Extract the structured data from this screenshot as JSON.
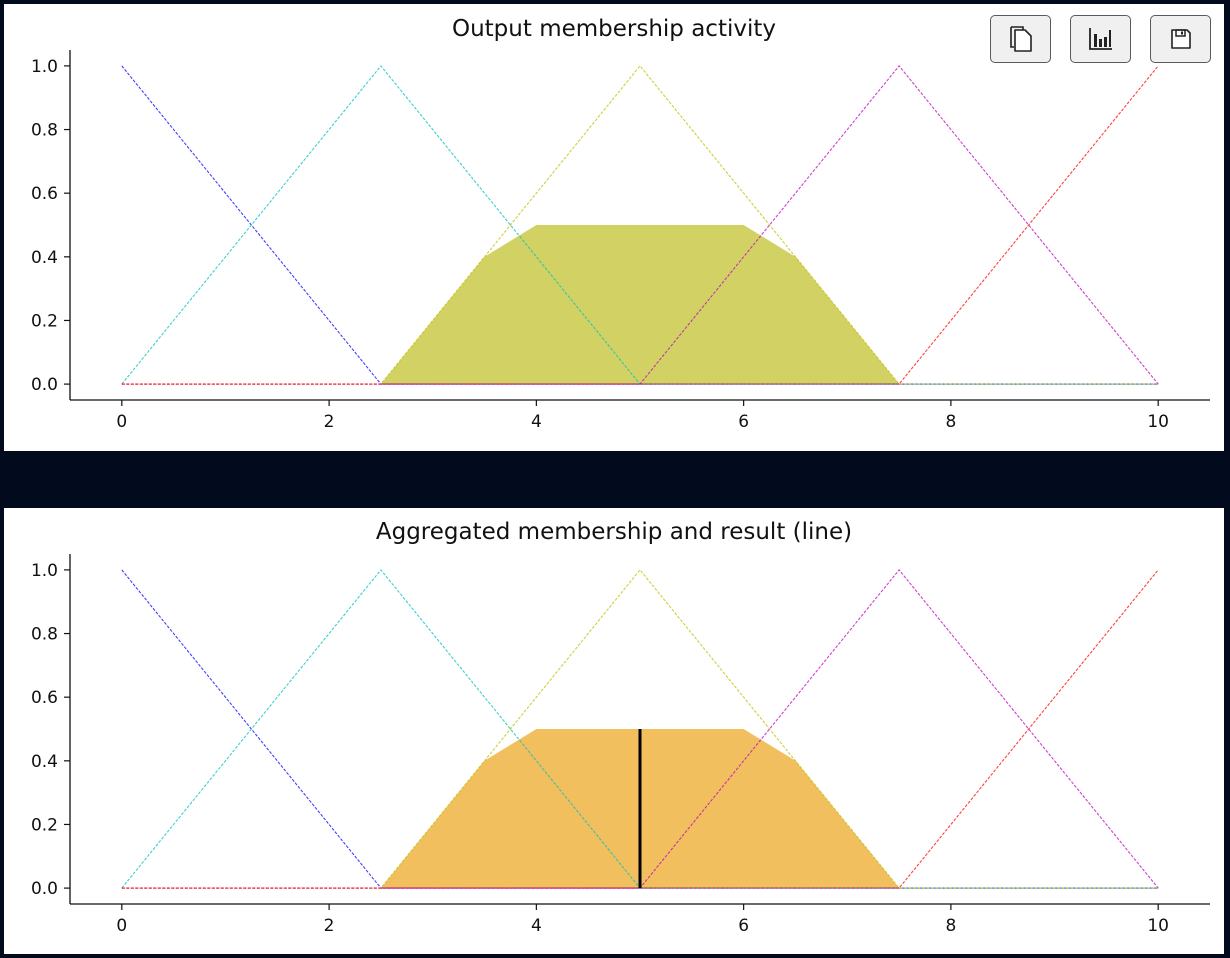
{
  "toolbar": {
    "buttons": [
      {
        "icon": "copy-icon"
      },
      {
        "icon": "bar-chart-icon"
      },
      {
        "icon": "save-icon"
      }
    ]
  },
  "chart_data": [
    {
      "type": "area",
      "title": "Output membership activity",
      "xlabel": "",
      "ylabel": "",
      "xlim": [
        -0.5,
        10.5
      ],
      "ylim": [
        -0.05,
        1.05
      ],
      "xticks": [
        0,
        2,
        4,
        6,
        8,
        10
      ],
      "yticks": [
        0.0,
        0.2,
        0.4,
        0.6,
        0.8,
        1.0
      ],
      "grid": false,
      "series": [
        {
          "kind": "line",
          "color": "#0000ff",
          "x": [
            0,
            2.5,
            10
          ],
          "y": [
            1,
            0,
            0
          ]
        },
        {
          "kind": "line",
          "color": "#00bfbf",
          "x": [
            0,
            2.5,
            5,
            10
          ],
          "y": [
            0,
            1,
            0,
            0
          ]
        },
        {
          "kind": "line",
          "color": "#bfbf00",
          "x": [
            0,
            2.5,
            5,
            7.5,
            10
          ],
          "y": [
            0,
            0,
            1,
            0,
            0
          ]
        },
        {
          "kind": "line",
          "color": "#bf00bf",
          "x": [
            0,
            5,
            7.5,
            10
          ],
          "y": [
            0,
            0,
            1,
            0
          ]
        },
        {
          "kind": "line",
          "color": "#ff0000",
          "x": [
            0,
            7.5,
            10
          ],
          "y": [
            0,
            0,
            1
          ]
        },
        {
          "kind": "fill",
          "color": "#d2d264",
          "x": [
            2.5,
            3.5,
            4,
            6,
            6.5,
            7.5
          ],
          "y": [
            0,
            0.4,
            0.5,
            0.5,
            0.4,
            0
          ]
        }
      ]
    },
    {
      "type": "area",
      "title": "Aggregated membership and result (line)",
      "xlabel": "",
      "ylabel": "",
      "xlim": [
        -0.5,
        10.5
      ],
      "ylim": [
        -0.05,
        1.05
      ],
      "xticks": [
        0,
        2,
        4,
        6,
        8,
        10
      ],
      "yticks": [
        0.0,
        0.2,
        0.4,
        0.6,
        0.8,
        1.0
      ],
      "grid": false,
      "series": [
        {
          "kind": "line",
          "color": "#0000ff",
          "x": [
            0,
            2.5,
            10
          ],
          "y": [
            1,
            0,
            0
          ]
        },
        {
          "kind": "line",
          "color": "#00bfbf",
          "x": [
            0,
            2.5,
            5,
            10
          ],
          "y": [
            0,
            1,
            0,
            0
          ]
        },
        {
          "kind": "line",
          "color": "#bfbf00",
          "x": [
            0,
            2.5,
            5,
            7.5,
            10
          ],
          "y": [
            0,
            0,
            1,
            0,
            0
          ]
        },
        {
          "kind": "line",
          "color": "#bf00bf",
          "x": [
            0,
            5,
            7.5,
            10
          ],
          "y": [
            0,
            0,
            1,
            0
          ]
        },
        {
          "kind": "line",
          "color": "#ff0000",
          "x": [
            0,
            7.5,
            10
          ],
          "y": [
            0,
            0,
            1
          ]
        },
        {
          "kind": "fill",
          "color": "#f2bf5e",
          "x": [
            2.5,
            3.5,
            4,
            6,
            6.5,
            7.5
          ],
          "y": [
            0,
            0.4,
            0.5,
            0.5,
            0.4,
            0
          ]
        },
        {
          "kind": "result",
          "color": "#000000",
          "x": [
            5,
            5
          ],
          "y": [
            0,
            0.5
          ]
        }
      ]
    }
  ]
}
